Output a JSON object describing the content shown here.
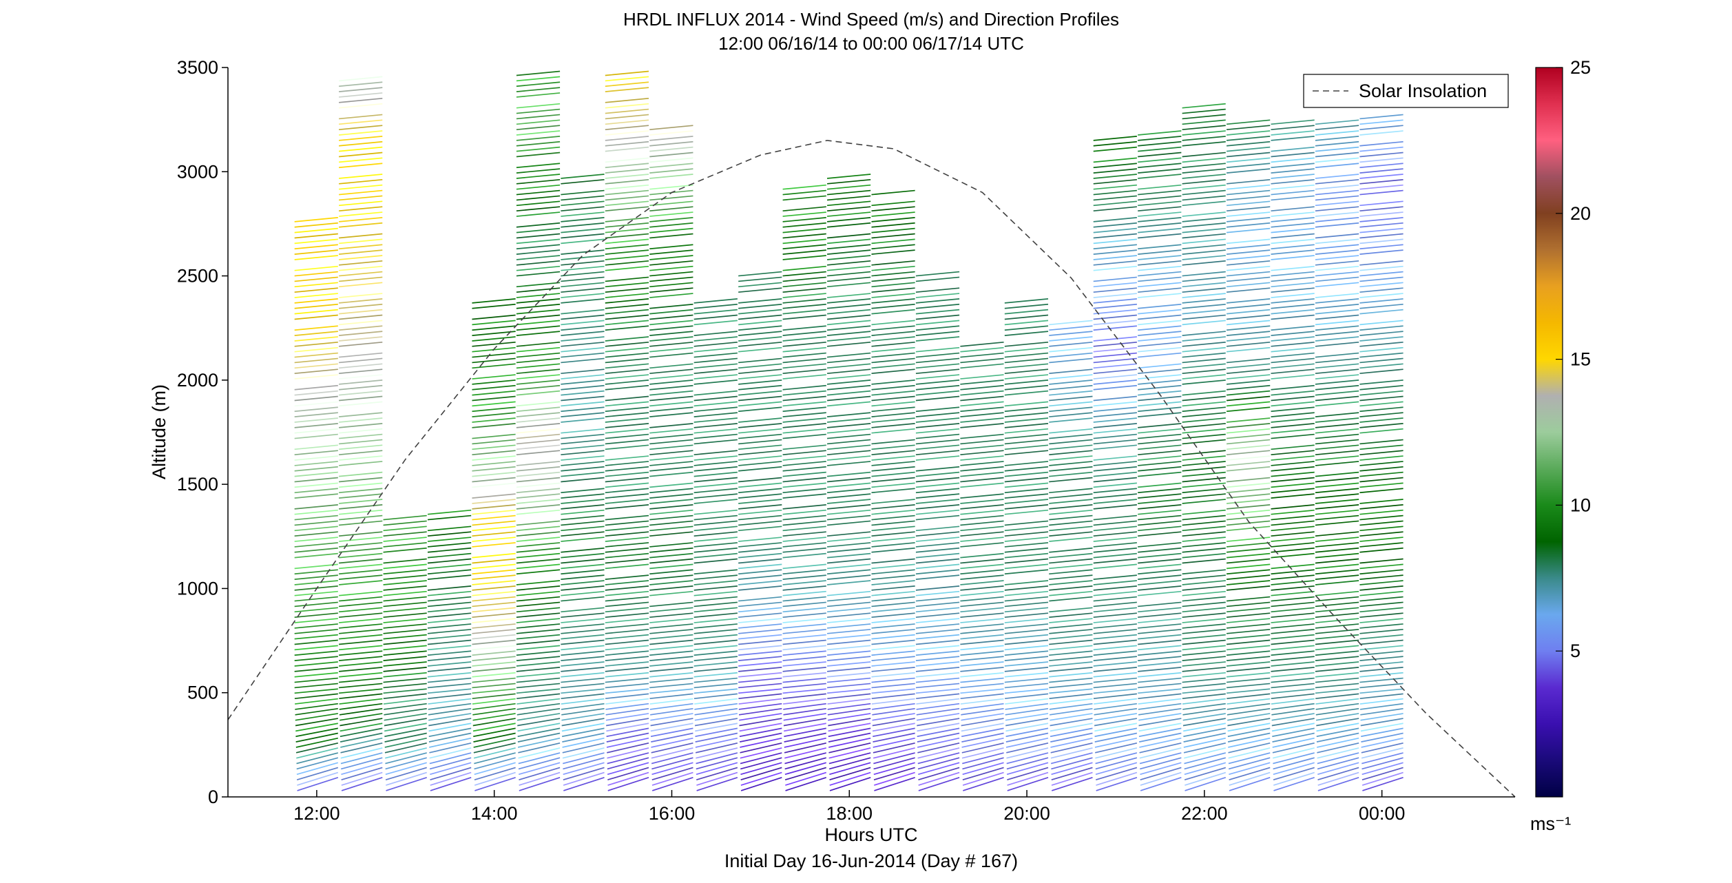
{
  "chart_data": {
    "type": "line",
    "title": "HRDL INFLUX 2014 - Wind Speed (m/s) and Direction Profiles",
    "subtitle": "12:00 06/16/14 to 00:00 06/17/14  UTC",
    "xlabel": "Hours UTC",
    "xlabel2": "Initial Day 16-Jun-2014 (Day # 167)",
    "ylabel": "Altitude (m)",
    "xlim_hours": [
      11,
      25.5
    ],
    "ylim": [
      0,
      3500
    ],
    "x_ticks": [
      {
        "hour": 12,
        "label": "12:00"
      },
      {
        "hour": 14,
        "label": "14:00"
      },
      {
        "hour": 16,
        "label": "16:00"
      },
      {
        "hour": 18,
        "label": "18:00"
      },
      {
        "hour": 20,
        "label": "20:00"
      },
      {
        "hour": 22,
        "label": "22:00"
      },
      {
        "hour": 24,
        "label": "00:00"
      }
    ],
    "y_ticks": [
      0,
      500,
      1000,
      1500,
      2000,
      2500,
      3000,
      3500
    ],
    "y_tick_labels": [
      "0",
      "500",
      "1000",
      "1500",
      "2000",
      "2500",
      "3000",
      "3500"
    ],
    "colorbar": {
      "range": [
        0,
        25
      ],
      "ticks": [
        5,
        10,
        15,
        20,
        25
      ],
      "tick_labels": [
        "5",
        "10",
        "15",
        "20",
        "25"
      ],
      "unit": "ms⁻¹",
      "colors": [
        "#000044",
        "#1a0a7a",
        "#3a0fb0",
        "#5a2ad0",
        "#6f7ff0",
        "#6aa8ee",
        "#3a8a8a",
        "#006400",
        "#1a8a1a",
        "#5aaa5a",
        "#9ccc9c",
        "#b0b0b0",
        "#ffd700",
        "#f5b800",
        "#e8a020",
        "#b07030",
        "#804020",
        "#a05060",
        "#ff6080",
        "#e03050",
        "#b00020"
      ]
    },
    "legend": {
      "entries": [
        "Solar Insolation"
      ],
      "placement": "top-right"
    },
    "solar_insolation": {
      "style": "dashed",
      "color": "#404040",
      "x": [
        11,
        12,
        13,
        14,
        15,
        16,
        17,
        17.75,
        18.5,
        19.5,
        20.5,
        21.5,
        22.5,
        23.5,
        24.5,
        25.5
      ],
      "y": [
        370,
        1000,
        1620,
        2150,
        2600,
        2900,
        3080,
        3150,
        3110,
        2900,
        2490,
        1930,
        1320,
        850,
        400,
        0
      ]
    },
    "series": [
      {
        "start": 11.75,
        "top": 2760,
        "speed": [
          4,
          9,
          9.5,
          10,
          10.5,
          11,
          12,
          12.8,
          14,
          15,
          15.5,
          15
        ]
      },
      {
        "start": 12.25,
        "top": 3450,
        "speed": [
          4,
          8.5,
          9.5,
          10,
          11,
          12,
          13,
          14,
          14.5,
          15,
          15,
          13
        ]
      },
      {
        "start": 12.75,
        "top": 1340,
        "speed": [
          4,
          8,
          8,
          9,
          9.5,
          10,
          10.5
        ]
      },
      {
        "start": 13.25,
        "top": 1370,
        "speed": [
          4,
          7,
          7.5,
          8,
          8.5,
          9
        ]
      },
      {
        "start": 13.75,
        "top": 2390,
        "speed": [
          4,
          9,
          11,
          14,
          15,
          15,
          12,
          10,
          9,
          9
        ]
      },
      {
        "start": 14.25,
        "top": 3480,
        "speed": [
          4,
          7.5,
          8,
          8.5,
          10,
          12.8,
          14,
          10,
          9,
          8,
          9,
          11,
          10
        ]
      },
      {
        "start": 14.75,
        "top": 2990,
        "speed": [
          4,
          7,
          7.5,
          8,
          8.5,
          8,
          7.5,
          7.5,
          8,
          8,
          8.5
        ]
      },
      {
        "start": 15.25,
        "top": 3480,
        "speed": [
          4,
          4.5,
          7.5,
          8,
          8.5,
          8,
          8,
          8,
          8.5,
          10,
          12,
          14,
          15
        ]
      },
      {
        "start": 15.75,
        "top": 3250,
        "speed": [
          4,
          5,
          7.5,
          8,
          8.5,
          8,
          8,
          8,
          8.5,
          9.5,
          12,
          14.5
        ]
      },
      {
        "start": 16.25,
        "top": 2370,
        "speed": [
          4,
          5,
          7.5,
          8,
          8,
          8,
          8,
          8,
          8
        ]
      },
      {
        "start": 16.75,
        "top": 2500,
        "speed": [
          3,
          4,
          4.5,
          7,
          8,
          8,
          8,
          8,
          8
        ]
      },
      {
        "start": 17.25,
        "top": 2940,
        "speed": [
          3,
          4,
          5,
          7.5,
          8,
          8,
          8,
          8,
          9,
          10
        ]
      },
      {
        "start": 17.75,
        "top": 2990,
        "speed": [
          3,
          4,
          5.5,
          7.5,
          8,
          8,
          8,
          8,
          8.5,
          9
        ]
      },
      {
        "start": 18.25,
        "top": 2910,
        "speed": [
          3.5,
          4.5,
          6,
          7.5,
          8,
          8,
          8,
          8,
          8.5,
          9
        ]
      },
      {
        "start": 18.75,
        "top": 2520,
        "speed": [
          4,
          5,
          6.5,
          7.5,
          8,
          8,
          8,
          8
        ]
      },
      {
        "start": 19.25,
        "top": 2170,
        "speed": [
          4,
          5.5,
          7,
          8,
          8,
          8,
          8
        ]
      },
      {
        "start": 19.75,
        "top": 2390,
        "speed": [
          4,
          6,
          7,
          8,
          8,
          8,
          8,
          8
        ]
      },
      {
        "start": 20.25,
        "top": 2270,
        "speed": [
          4,
          6,
          7.5,
          8,
          8,
          8,
          7,
          6
        ]
      },
      {
        "start": 20.75,
        "top": 3170,
        "speed": [
          4.5,
          6.5,
          7.5,
          8,
          8,
          7.5,
          4.5,
          6,
          8,
          9
        ]
      },
      {
        "start": 21.25,
        "top": 3190,
        "speed": [
          5,
          6.5,
          7.5,
          8,
          8.5,
          8,
          6,
          6.5,
          8,
          8.5
        ]
      },
      {
        "start": 21.75,
        "top": 3310,
        "speed": [
          5,
          7,
          8,
          8,
          8.5,
          8.5,
          8,
          7,
          7.5,
          8,
          8.5
        ]
      },
      {
        "start": 22.25,
        "top": 3270,
        "speed": [
          5,
          7,
          8,
          8.5,
          11,
          13,
          8,
          7,
          6.5,
          7,
          8.5
        ]
      },
      {
        "start": 22.75,
        "top": 3250,
        "speed": [
          5,
          7,
          8,
          8.5,
          9,
          8.5,
          8,
          7,
          6.5,
          6.5,
          8
        ]
      },
      {
        "start": 23.25,
        "top": 3240,
        "speed": [
          4.5,
          7,
          8,
          8.5,
          9,
          8.5,
          8,
          7,
          6,
          5.5,
          7.5
        ]
      },
      {
        "start": 23.75,
        "top": 3260,
        "speed": [
          4,
          6.5,
          7.5,
          8.5,
          9,
          8.5,
          8,
          7,
          5.5,
          4.5,
          6.5
        ]
      }
    ]
  }
}
